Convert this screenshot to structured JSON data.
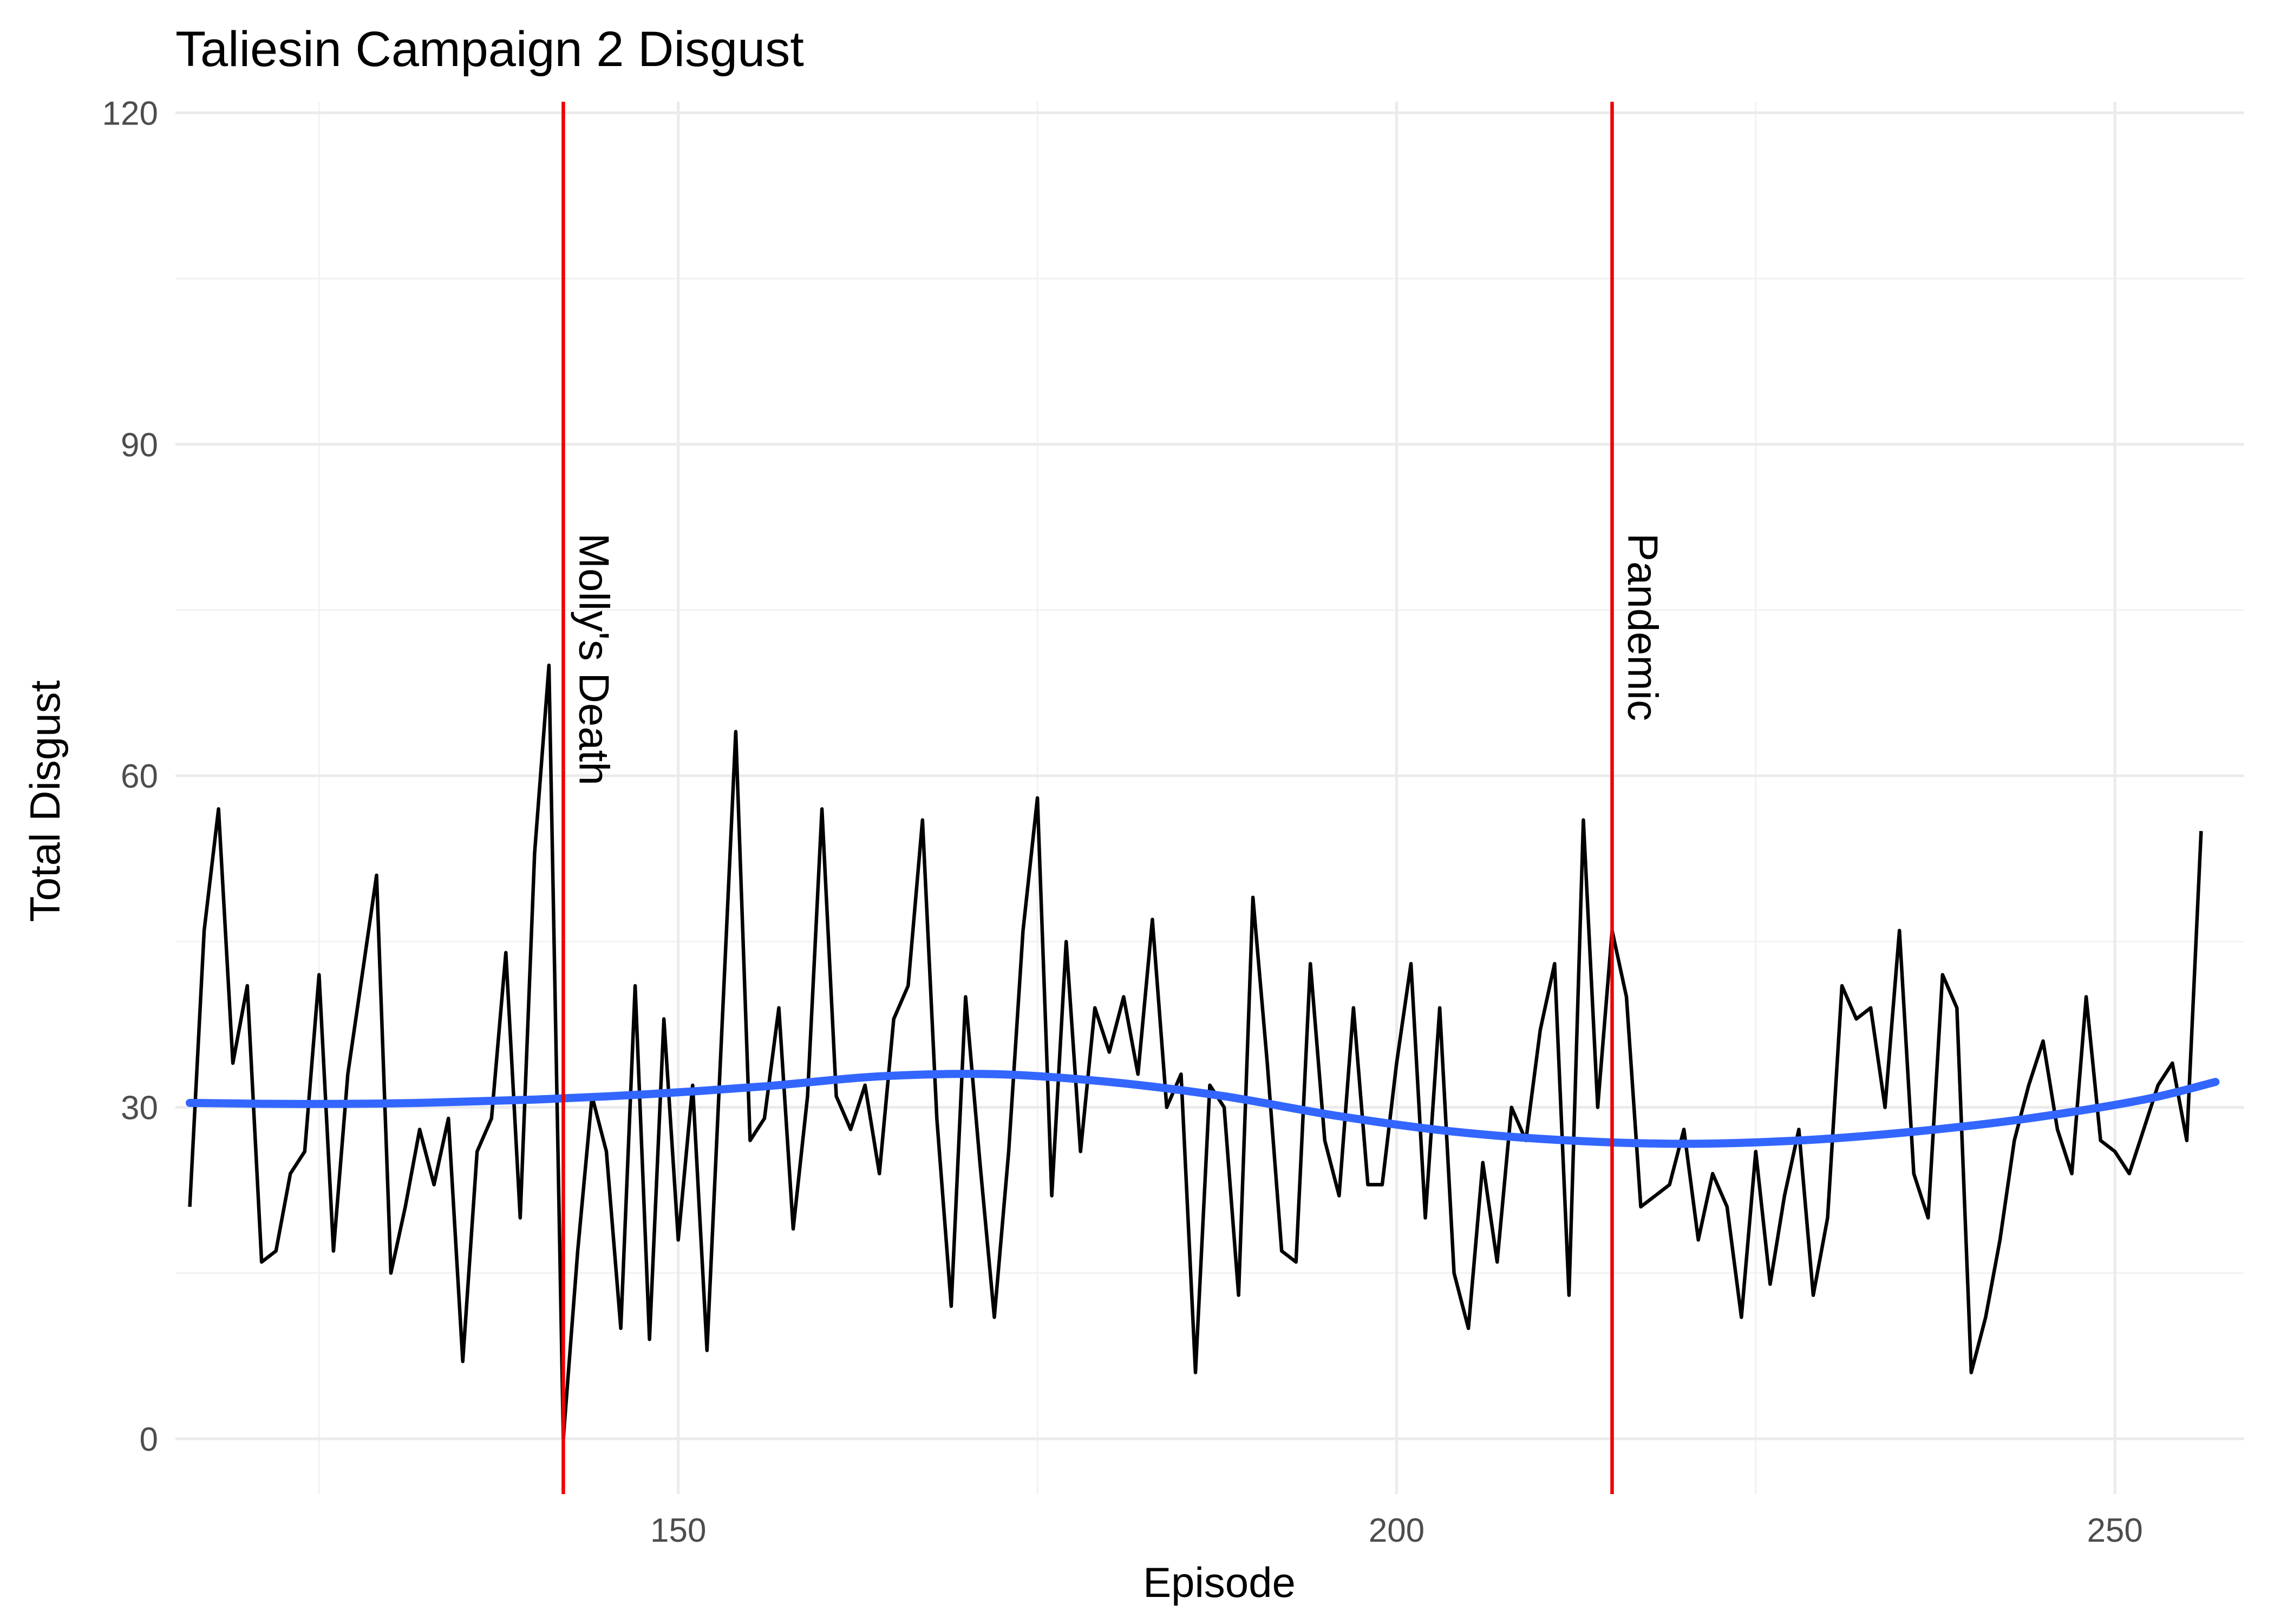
{
  "chart_data": {
    "type": "line",
    "title": "Taliesin Campaign 2 Disgust",
    "xlabel": "Episode",
    "ylabel": "Total Disgust",
    "xlim": [
      115,
      259
    ],
    "ylim": [
      -5,
      121
    ],
    "x_ticks": [
      150,
      200,
      250
    ],
    "y_ticks": [
      0,
      30,
      60,
      90,
      120
    ],
    "grid": true,
    "legend": "none",
    "colors": {
      "series": "#000000",
      "smooth": "#3366ff",
      "vline": "#ee0000"
    },
    "series": [
      {
        "x_start": 116,
        "values": [
          21,
          46,
          57,
          34,
          41,
          16,
          17,
          24,
          26,
          42,
          17,
          33,
          42,
          51,
          15,
          21,
          28,
          23,
          29,
          7,
          26,
          29,
          44,
          20,
          53,
          70,
          0,
          17,
          31,
          26,
          10,
          41,
          9,
          38,
          18,
          32,
          8,
          36,
          64,
          27,
          29,
          39,
          19,
          31,
          57,
          31,
          28,
          32,
          24,
          38,
          41,
          56,
          29,
          12,
          40,
          25,
          11,
          26,
          46,
          58,
          22,
          45,
          26,
          39,
          35,
          40,
          33,
          47,
          30,
          33,
          6,
          32,
          30,
          13,
          49,
          34,
          17,
          16,
          43,
          27,
          22,
          39,
          23,
          23,
          34,
          43,
          20,
          39,
          15,
          10,
          25,
          16,
          30,
          27,
          37,
          43,
          13,
          56,
          30,
          46,
          40,
          21,
          22,
          23,
          28,
          18,
          24,
          21,
          11,
          26,
          14,
          22,
          28,
          13,
          20,
          41,
          38,
          39,
          30,
          46,
          24,
          20,
          42,
          39,
          6,
          11,
          18,
          27,
          32,
          36,
          28,
          24,
          40,
          27,
          26,
          24,
          28,
          32,
          34,
          27,
          55
        ]
      },
      {
        "smooth_x": [
          116,
          124,
          132,
          140,
          148,
          156,
          164,
          172,
          180,
          188,
          196,
          204,
          212,
          220,
          228,
          236,
          244,
          252,
          257
        ],
        "smooth_y": [
          30.4,
          30.3,
          30.4,
          30.7,
          31.2,
          31.9,
          32.8,
          33.0,
          32.3,
          31.0,
          29.2,
          27.8,
          27.0,
          26.7,
          27.0,
          27.8,
          29.0,
          30.7,
          32.3
        ]
      }
    ],
    "vlines": [
      {
        "x": 142,
        "label": "Molly's Death"
      },
      {
        "x": 215,
        "label": "Pandemic"
      }
    ]
  }
}
